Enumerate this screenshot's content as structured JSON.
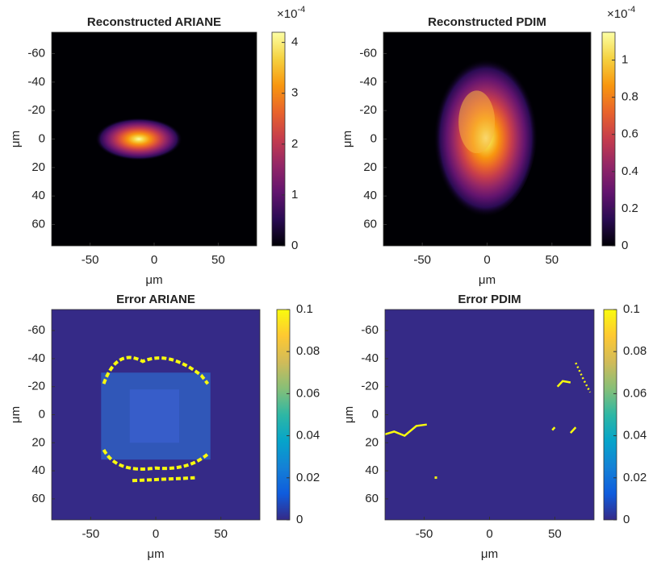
{
  "chart_data": [
    {
      "type": "heatmap",
      "title": "Reconstructed ARIANE",
      "xlabel": "μm",
      "ylabel": "μm",
      "xlim": [
        -80,
        80
      ],
      "ylim": [
        -75,
        75
      ],
      "y_reversed": true,
      "xticks": [
        -50,
        0,
        50
      ],
      "yticks": [
        -60,
        -40,
        -20,
        0,
        20,
        40,
        60
      ],
      "colormap": "inferno",
      "clim": [
        0,
        4.2
      ],
      "cticks": [
        0,
        1,
        2,
        3,
        4
      ],
      "scale_base": "×10",
      "scale_exponent": "-4"
    },
    {
      "type": "heatmap",
      "title": "Reconstructed PDIM",
      "xlabel": "μm",
      "ylabel": "μm",
      "xlim": [
        -80,
        80
      ],
      "ylim": [
        -75,
        75
      ],
      "y_reversed": true,
      "xticks": [
        -50,
        0,
        50
      ],
      "yticks": [
        -60,
        -40,
        -20,
        0,
        20,
        40,
        60
      ],
      "colormap": "inferno",
      "clim": [
        0,
        1.15
      ],
      "cticks": [
        0,
        0.2,
        0.4,
        0.6,
        0.8,
        1
      ],
      "scale_base": "×10",
      "scale_exponent": "-4"
    },
    {
      "type": "heatmap",
      "title": "Error ARIANE",
      "xlabel": "μm",
      "ylabel": "μm",
      "xlim": [
        -80,
        80
      ],
      "ylim": [
        -75,
        75
      ],
      "y_reversed": true,
      "xticks": [
        -50,
        0,
        50
      ],
      "yticks": [
        -60,
        -40,
        -20,
        0,
        20,
        40,
        60
      ],
      "colormap": "parula",
      "clim": [
        0,
        0.1
      ],
      "cticks": [
        0,
        0.02,
        0.04,
        0.06,
        0.08,
        0.1
      ]
    },
    {
      "type": "heatmap",
      "title": "Error PDIM",
      "xlabel": "μm",
      "ylabel": "μm",
      "xlim": [
        -80,
        80
      ],
      "ylim": [
        -75,
        75
      ],
      "y_reversed": true,
      "xticks": [
        -50,
        0,
        50
      ],
      "yticks": [
        -60,
        -40,
        -20,
        0,
        20,
        40,
        60
      ],
      "colormap": "parula",
      "clim": [
        0,
        0.1
      ],
      "cticks": [
        0,
        0.02,
        0.04,
        0.06,
        0.08,
        0.1
      ]
    }
  ]
}
